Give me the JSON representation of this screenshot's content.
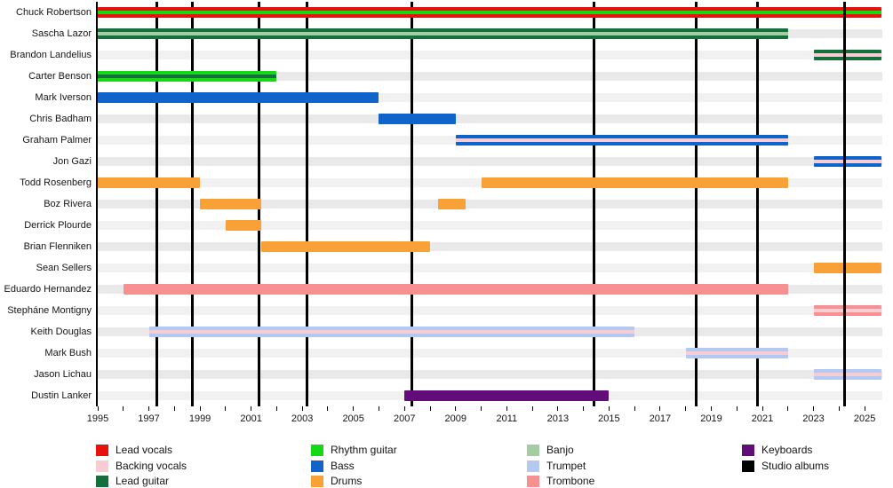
{
  "chart_data": {
    "type": "timeline",
    "x_axis": {
      "start": 1995,
      "end": 2025.7,
      "labeled_ticks": [
        1995,
        1997,
        1999,
        2001,
        2003,
        2005,
        2007,
        2009,
        2011,
        2013,
        2015,
        2017,
        2019,
        2021,
        2023,
        2025
      ],
      "minor_ticks": [
        1996,
        1998,
        2000,
        2002,
        2004,
        2006,
        2008,
        2010,
        2012,
        2014,
        2016,
        2018,
        2020,
        2022,
        2024
      ]
    },
    "colors": {
      "Lead vocals": "#e8120c",
      "Backing vocals": "#f7ccd2",
      "Lead guitar": "#156f3c",
      "Rhythm guitar": "#14d914",
      "Bass": "#1063c8",
      "Drums": "#f7a137",
      "Banjo": "#a3cda1",
      "Trumpet": "#b3c9f2",
      "Trombone": "#f79191",
      "Keyboards": "#610c78",
      "Studio albums": "#000000"
    },
    "album_lines": [
      {
        "year": 1997.3
      },
      {
        "year": 1998.7
      },
      {
        "year": 2001.3
      },
      {
        "year": 2003.2
      },
      {
        "year": 2007.3
      },
      {
        "year": 2014.4
      },
      {
        "year": 2018.4
      },
      {
        "year": 2020.8
      },
      {
        "year": 2024.2,
        "front": true
      }
    ],
    "members": [
      {
        "name": "Chuck Robertson",
        "segments": [
          {
            "from": 1995,
            "to": 2025.7,
            "role": "Lead vocals",
            "stripe": "Rhythm guitar"
          }
        ]
      },
      {
        "name": "Sascha Lazor",
        "segments": [
          {
            "from": 1995,
            "to": 2022,
            "role": "Lead guitar",
            "stripe": "Banjo"
          }
        ]
      },
      {
        "name": "Brandon Landelius",
        "segments": [
          {
            "from": 2023,
            "to": 2025.7,
            "role": "Lead guitar",
            "stripe": "Backing vocals"
          }
        ]
      },
      {
        "name": "Carter Benson",
        "segments": [
          {
            "from": 1995,
            "to": 2002,
            "role": "Rhythm guitar",
            "stripe": "Lead guitar"
          }
        ]
      },
      {
        "name": "Mark Iverson",
        "segments": [
          {
            "from": 1995,
            "to": 2006,
            "role": "Bass"
          }
        ]
      },
      {
        "name": "Chris Badham",
        "segments": [
          {
            "from": 2006,
            "to": 2009,
            "role": "Bass"
          }
        ]
      },
      {
        "name": "Graham Palmer",
        "segments": [
          {
            "from": 2009,
            "to": 2022,
            "role": "Bass",
            "stripe": "Backing vocals"
          }
        ]
      },
      {
        "name": "Jon Gazi",
        "segments": [
          {
            "from": 2023,
            "to": 2025.7,
            "role": "Bass",
            "stripe": "Backing vocals"
          }
        ]
      },
      {
        "name": "Todd Rosenberg",
        "segments": [
          {
            "from": 1995,
            "to": 1999,
            "role": "Drums"
          },
          {
            "from": 2010,
            "to": 2022,
            "role": "Drums"
          }
        ]
      },
      {
        "name": "Boz Rivera",
        "segments": [
          {
            "from": 1999,
            "to": 2001.4,
            "role": "Drums"
          },
          {
            "from": 2008.3,
            "to": 2009.4,
            "role": "Drums"
          }
        ]
      },
      {
        "name": "Derrick Plourde",
        "segments": [
          {
            "from": 2000,
            "to": 2001.4,
            "role": "Drums"
          }
        ]
      },
      {
        "name": "Brian Flenniken",
        "segments": [
          {
            "from": 2001.4,
            "to": 2008,
            "role": "Drums"
          }
        ]
      },
      {
        "name": "Sean Sellers",
        "segments": [
          {
            "from": 2023,
            "to": 2025.7,
            "role": "Drums"
          }
        ]
      },
      {
        "name": "Eduardo Hernandez",
        "segments": [
          {
            "from": 1996,
            "to": 2022,
            "role": "Trombone"
          }
        ]
      },
      {
        "name": "Stepháne Montigny",
        "segments": [
          {
            "from": 2023,
            "to": 2025.7,
            "role": "Trombone",
            "stripe": "Backing vocals"
          }
        ]
      },
      {
        "name": "Keith Douglas",
        "segments": [
          {
            "from": 1997,
            "to": 2016,
            "role": "Trumpet",
            "stripe": "Backing vocals"
          }
        ]
      },
      {
        "name": "Mark Bush",
        "segments": [
          {
            "from": 2018,
            "to": 2022,
            "role": "Trumpet",
            "stripe": "Backing vocals"
          }
        ]
      },
      {
        "name": "Jason Lichau",
        "segments": [
          {
            "from": 2023,
            "to": 2025.7,
            "role": "Trumpet",
            "stripe": "Backing vocals"
          }
        ]
      },
      {
        "name": "Dustin Lanker",
        "segments": [
          {
            "from": 2007,
            "to": 2015,
            "role": "Keyboards"
          }
        ]
      }
    ],
    "legend": {
      "columns": [
        [
          {
            "label": "Lead vocals"
          },
          {
            "label": "Backing vocals"
          },
          {
            "label": "Lead guitar"
          }
        ],
        [
          {
            "label": "Rhythm guitar"
          },
          {
            "label": "Bass"
          },
          {
            "label": "Drums"
          }
        ],
        [
          {
            "label": "Banjo"
          },
          {
            "label": "Trumpet"
          },
          {
            "label": "Trombone"
          }
        ],
        [
          {
            "label": "Keyboards"
          },
          {
            "label": "Studio albums"
          }
        ]
      ]
    }
  },
  "ui": {
    "row_band_colors": [
      "#f1f1f1",
      "#e9e9e9"
    ]
  }
}
